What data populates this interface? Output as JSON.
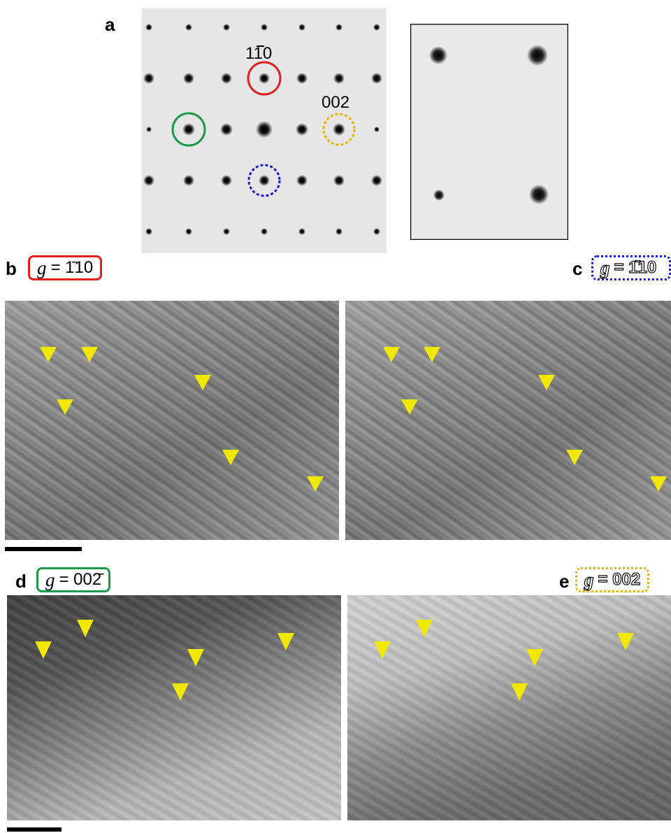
{
  "panels": {
    "a": {
      "letter": "a",
      "spot_labels": {
        "red": "110",
        "yellow": "002"
      }
    },
    "b": {
      "letter": "b",
      "g_symbol": "g",
      "g_value": "= 1̄10"
    },
    "c": {
      "letter": "c",
      "g_symbol": "g",
      "g_value": "= 1̄10"
    },
    "d": {
      "letter": "d",
      "g_symbol": "g",
      "g_value": "= 002̄"
    },
    "e": {
      "letter": "e",
      "g_symbol": "g",
      "g_value": "= 002"
    }
  },
  "colors": {
    "red": "#e02020",
    "blue": "#1a1acc",
    "green": "#1a9a4a",
    "yellow": "#e6b400",
    "arrow": "#f0e800"
  }
}
